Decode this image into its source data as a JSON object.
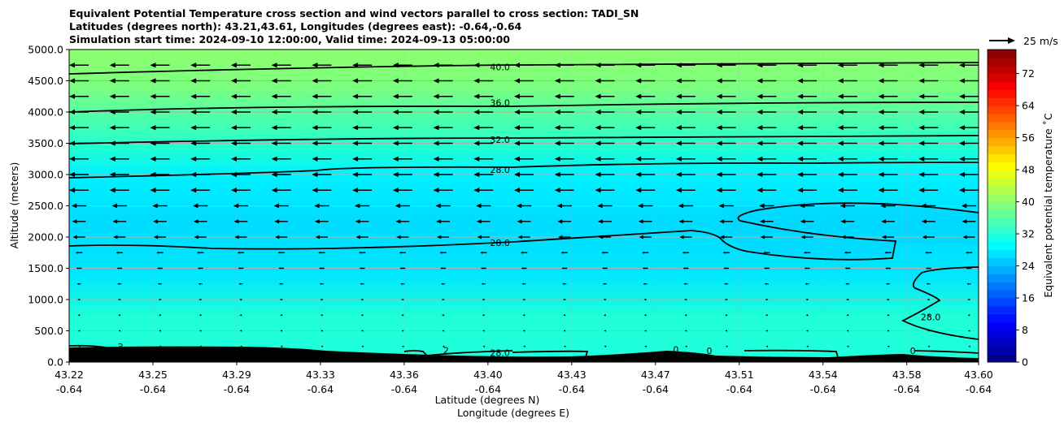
{
  "chart_data": {
    "type": "contour",
    "title_lines": [
      "Equivalent Potential Temperature cross section and wind vectors parallel to cross section: TADI_SN",
      "Latitudes (degrees north): 43.21,43.61, Longitudes (degrees east): -0.64,-0.64",
      "Simulation start time: 2024-09-10 12:00:00, Valid time: 2024-09-13 05:00:00"
    ],
    "xlabel_line1": "Latitude (degrees N)",
    "xlabel_line2": "Longitude (degrees E)",
    "ylabel": "Altitude (meters)",
    "colorbar_label": "Equivalent potential temperature $^\\circ$C",
    "colorbar_label_display": "Equivalent potential temperature ˚C",
    "quiver_key_label": "25 m/s",
    "xlim": [
      43.22,
      43.6
    ],
    "ylim": [
      0,
      5000
    ],
    "x_ticks": [
      {
        "lat": "43.22",
        "lon": "-0.64",
        "value": 43.22
      },
      {
        "lat": "43.25",
        "lon": "-0.64",
        "value": 43.255
      },
      {
        "lat": "43.29",
        "lon": "-0.64",
        "value": 43.29
      },
      {
        "lat": "43.33",
        "lon": "-0.64",
        "value": 43.325
      },
      {
        "lat": "43.36",
        "lon": "-0.64",
        "value": 43.36
      },
      {
        "lat": "43.40",
        "lon": "-0.64",
        "value": 43.395
      },
      {
        "lat": "43.43",
        "lon": "-0.64",
        "value": 43.43
      },
      {
        "lat": "43.47",
        "lon": "-0.64",
        "value": 43.465
      },
      {
        "lat": "43.51",
        "lon": "-0.64",
        "value": 43.5
      },
      {
        "lat": "43.54",
        "lon": "-0.64",
        "value": 43.535
      },
      {
        "lat": "43.58",
        "lon": "-0.64",
        "value": 43.57
      },
      {
        "lat": "43.60",
        "lon": "-0.64",
        "value": 43.6
      }
    ],
    "y_ticks": [
      "0.0",
      "500.0",
      "1000.0",
      "1500.0",
      "2000.0",
      "2500.0",
      "3000.0",
      "3500.0",
      "4000.0",
      "4500.0",
      "5000.0"
    ],
    "y_tick_values": [
      0,
      500,
      1000,
      1500,
      2000,
      2500,
      3000,
      3500,
      4000,
      4500,
      5000
    ],
    "colorbar_ticks": [
      "0",
      "8",
      "16",
      "24",
      "32",
      "40",
      "48",
      "56",
      "64",
      "72"
    ],
    "colorbar_tick_values": [
      0,
      8,
      16,
      24,
      32,
      40,
      48,
      56,
      64,
      72
    ],
    "colorbar_range": [
      0,
      78
    ],
    "colormap": "jet",
    "grid": true,
    "contour_labels": [
      {
        "text": "40.0",
        "x": 43.4,
        "y": 4720
      },
      {
        "text": "36.0",
        "x": 43.4,
        "y": 4150
      },
      {
        "text": "32.0",
        "x": 43.4,
        "y": 3560
      },
      {
        "text": "28.0",
        "x": 43.4,
        "y": 3080
      },
      {
        "text": "28.0",
        "x": 43.4,
        "y": 1910
      },
      {
        "text": "28.0",
        "x": 43.4,
        "y": 150
      },
      {
        "text": "28.0",
        "x": 43.58,
        "y": 720
      },
      {
        "text": "2",
        "x": 43.2415,
        "y": 250
      },
      {
        "text": "2",
        "x": 43.3775,
        "y": 190
      },
      {
        "text": "0",
        "x": 43.4735,
        "y": 200
      },
      {
        "text": "0",
        "x": 43.4875,
        "y": 180
      },
      {
        "text": "0",
        "x": 43.5725,
        "y": 180
      }
    ]
  }
}
